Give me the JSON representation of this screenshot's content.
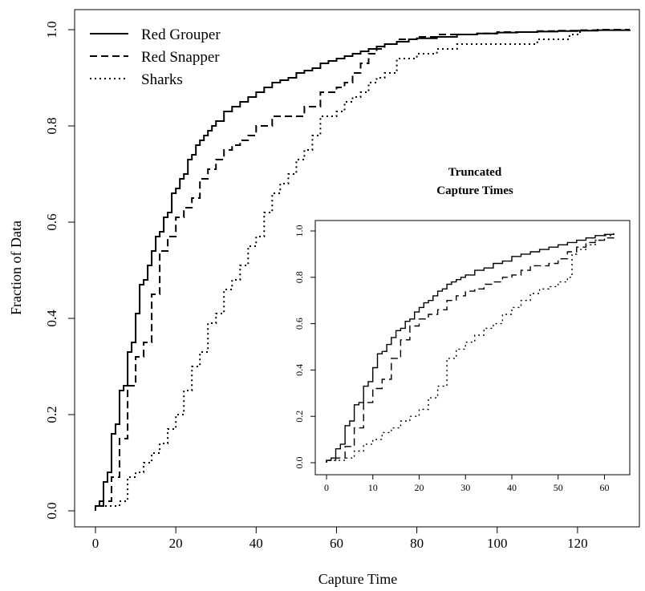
{
  "chart_data": [
    {
      "type": "line",
      "subtype": "step-ecdf",
      "title": "",
      "xlabel": "Capture Time",
      "ylabel": "Fraction of Data",
      "xlim": [
        0,
        135
      ],
      "ylim": [
        0,
        1
      ],
      "x_ticks": [
        "0",
        "20",
        "40",
        "60",
        "80",
        "100",
        "120"
      ],
      "y_ticks": [
        "0.0",
        "0.2",
        "0.4",
        "0.6",
        "0.8",
        "1.0"
      ],
      "legend_position": "top-left",
      "grid": false,
      "series": [
        {
          "name": "Red Grouper",
          "style": "solid",
          "x": [
            0,
            1,
            2,
            3,
            4,
            5,
            6,
            7,
            8,
            9,
            10,
            11,
            12,
            13,
            14,
            15,
            16,
            17,
            18,
            19,
            20,
            21,
            22,
            23,
            24,
            25,
            26,
            27,
            28,
            29,
            30,
            32,
            34,
            36,
            38,
            40,
            42,
            44,
            46,
            48,
            50,
            52,
            54,
            56,
            58,
            60,
            62,
            64,
            66,
            68,
            70,
            72,
            75,
            78,
            80,
            85,
            90,
            95,
            100,
            105,
            110,
            115,
            120,
            125,
            133
          ],
          "y": [
            0.01,
            0.02,
            0.06,
            0.08,
            0.16,
            0.18,
            0.25,
            0.26,
            0.33,
            0.35,
            0.41,
            0.47,
            0.48,
            0.51,
            0.54,
            0.57,
            0.58,
            0.61,
            0.62,
            0.66,
            0.67,
            0.69,
            0.7,
            0.73,
            0.74,
            0.76,
            0.77,
            0.78,
            0.79,
            0.8,
            0.81,
            0.83,
            0.84,
            0.85,
            0.86,
            0.87,
            0.88,
            0.89,
            0.895,
            0.9,
            0.91,
            0.915,
            0.92,
            0.93,
            0.935,
            0.94,
            0.945,
            0.95,
            0.955,
            0.96,
            0.965,
            0.97,
            0.975,
            0.98,
            0.982,
            0.985,
            0.99,
            0.992,
            0.994,
            0.995,
            0.996,
            0.997,
            0.998,
            0.999,
            1.0
          ]
        },
        {
          "name": "Red Snapper",
          "style": "dashed",
          "x": [
            0,
            2,
            4,
            6,
            8,
            10,
            12,
            14,
            16,
            18,
            20,
            22,
            24,
            26,
            28,
            30,
            32,
            34,
            36,
            38,
            40,
            44,
            48,
            52,
            56,
            60,
            62,
            64,
            66,
            68,
            70,
            72,
            75,
            80,
            85,
            90,
            95,
            100,
            105,
            110,
            115,
            120,
            125,
            133
          ],
          "y": [
            0.01,
            0.02,
            0.07,
            0.15,
            0.26,
            0.32,
            0.35,
            0.45,
            0.54,
            0.57,
            0.61,
            0.63,
            0.65,
            0.69,
            0.71,
            0.73,
            0.75,
            0.76,
            0.77,
            0.78,
            0.8,
            0.82,
            0.82,
            0.84,
            0.87,
            0.88,
            0.89,
            0.91,
            0.93,
            0.95,
            0.96,
            0.97,
            0.98,
            0.985,
            0.99,
            0.99,
            0.992,
            0.995,
            0.995,
            0.997,
            0.998,
            0.999,
            1.0,
            1.0
          ]
        },
        {
          "name": "Sharks",
          "style": "dotted",
          "x": [
            0,
            6,
            8,
            10,
            12,
            14,
            16,
            18,
            20,
            22,
            24,
            26,
            28,
            30,
            32,
            34,
            36,
            38,
            40,
            42,
            44,
            46,
            48,
            50,
            52,
            54,
            56,
            58,
            60,
            62,
            64,
            66,
            68,
            70,
            72,
            75,
            80,
            85,
            90,
            95,
            100,
            105,
            110,
            115,
            118,
            120,
            121
          ],
          "y": [
            0.01,
            0.02,
            0.07,
            0.08,
            0.1,
            0.12,
            0.14,
            0.17,
            0.2,
            0.25,
            0.3,
            0.33,
            0.39,
            0.41,
            0.46,
            0.48,
            0.51,
            0.55,
            0.57,
            0.62,
            0.66,
            0.68,
            0.7,
            0.73,
            0.75,
            0.78,
            0.82,
            0.82,
            0.83,
            0.85,
            0.86,
            0.87,
            0.89,
            0.9,
            0.91,
            0.94,
            0.95,
            0.96,
            0.97,
            0.97,
            0.97,
            0.97,
            0.98,
            0.98,
            0.99,
            0.995,
            1.0
          ]
        }
      ]
    },
    {
      "type": "line",
      "subtype": "step-ecdf",
      "title": "Truncated Capture Times",
      "title_lines": [
        "Truncated",
        "Capture Times"
      ],
      "xlabel": "",
      "ylabel": "",
      "xlim": [
        0,
        63
      ],
      "ylim": [
        0,
        1
      ],
      "x_ticks": [
        "0",
        "10",
        "20",
        "30",
        "40",
        "50",
        "60"
      ],
      "y_ticks": [
        "0.0",
        "0.2",
        "0.4",
        "0.6",
        "0.8",
        "1.0"
      ],
      "position": "inset-bottom-right",
      "grid": false,
      "series": [
        {
          "style": "solid",
          "x": [
            0,
            1,
            2,
            3,
            4,
            5,
            6,
            7,
            8,
            9,
            10,
            11,
            12,
            13,
            14,
            15,
            16,
            17,
            18,
            19,
            20,
            21,
            22,
            23,
            24,
            25,
            26,
            27,
            28,
            29,
            30,
            32,
            34,
            36,
            38,
            40,
            42,
            44,
            46,
            48,
            50,
            52,
            54,
            56,
            58,
            60,
            62
          ],
          "y": [
            0.01,
            0.02,
            0.06,
            0.08,
            0.16,
            0.18,
            0.25,
            0.26,
            0.33,
            0.35,
            0.41,
            0.47,
            0.48,
            0.51,
            0.54,
            0.57,
            0.58,
            0.61,
            0.62,
            0.65,
            0.67,
            0.69,
            0.7,
            0.72,
            0.74,
            0.75,
            0.77,
            0.78,
            0.79,
            0.8,
            0.81,
            0.83,
            0.84,
            0.86,
            0.87,
            0.89,
            0.9,
            0.91,
            0.92,
            0.93,
            0.94,
            0.95,
            0.96,
            0.97,
            0.98,
            0.985,
            0.99
          ]
        },
        {
          "style": "dashed",
          "x": [
            0,
            2,
            4,
            6,
            8,
            10,
            12,
            14,
            16,
            18,
            20,
            22,
            24,
            26,
            28,
            30,
            32,
            34,
            36,
            38,
            40,
            42,
            44,
            46,
            48,
            50,
            52,
            54,
            56,
            58,
            60,
            62
          ],
          "y": [
            0.01,
            0.02,
            0.07,
            0.15,
            0.26,
            0.32,
            0.36,
            0.45,
            0.53,
            0.59,
            0.62,
            0.64,
            0.66,
            0.7,
            0.72,
            0.74,
            0.75,
            0.77,
            0.78,
            0.8,
            0.81,
            0.83,
            0.85,
            0.85,
            0.86,
            0.88,
            0.91,
            0.93,
            0.95,
            0.96,
            0.97,
            0.98
          ]
        },
        {
          "style": "dotted",
          "x": [
            0,
            4,
            6,
            8,
            10,
            12,
            14,
            16,
            18,
            20,
            22,
            24,
            26,
            28,
            30,
            32,
            34,
            36,
            38,
            40,
            42,
            44,
            46,
            48,
            50,
            52,
            53,
            54,
            56,
            58,
            60,
            62
          ],
          "y": [
            0.01,
            0.02,
            0.05,
            0.08,
            0.1,
            0.13,
            0.15,
            0.18,
            0.2,
            0.23,
            0.28,
            0.33,
            0.45,
            0.49,
            0.52,
            0.55,
            0.58,
            0.6,
            0.64,
            0.67,
            0.7,
            0.73,
            0.75,
            0.76,
            0.78,
            0.8,
            0.9,
            0.92,
            0.94,
            0.96,
            0.98,
            1.0
          ]
        }
      ]
    }
  ]
}
